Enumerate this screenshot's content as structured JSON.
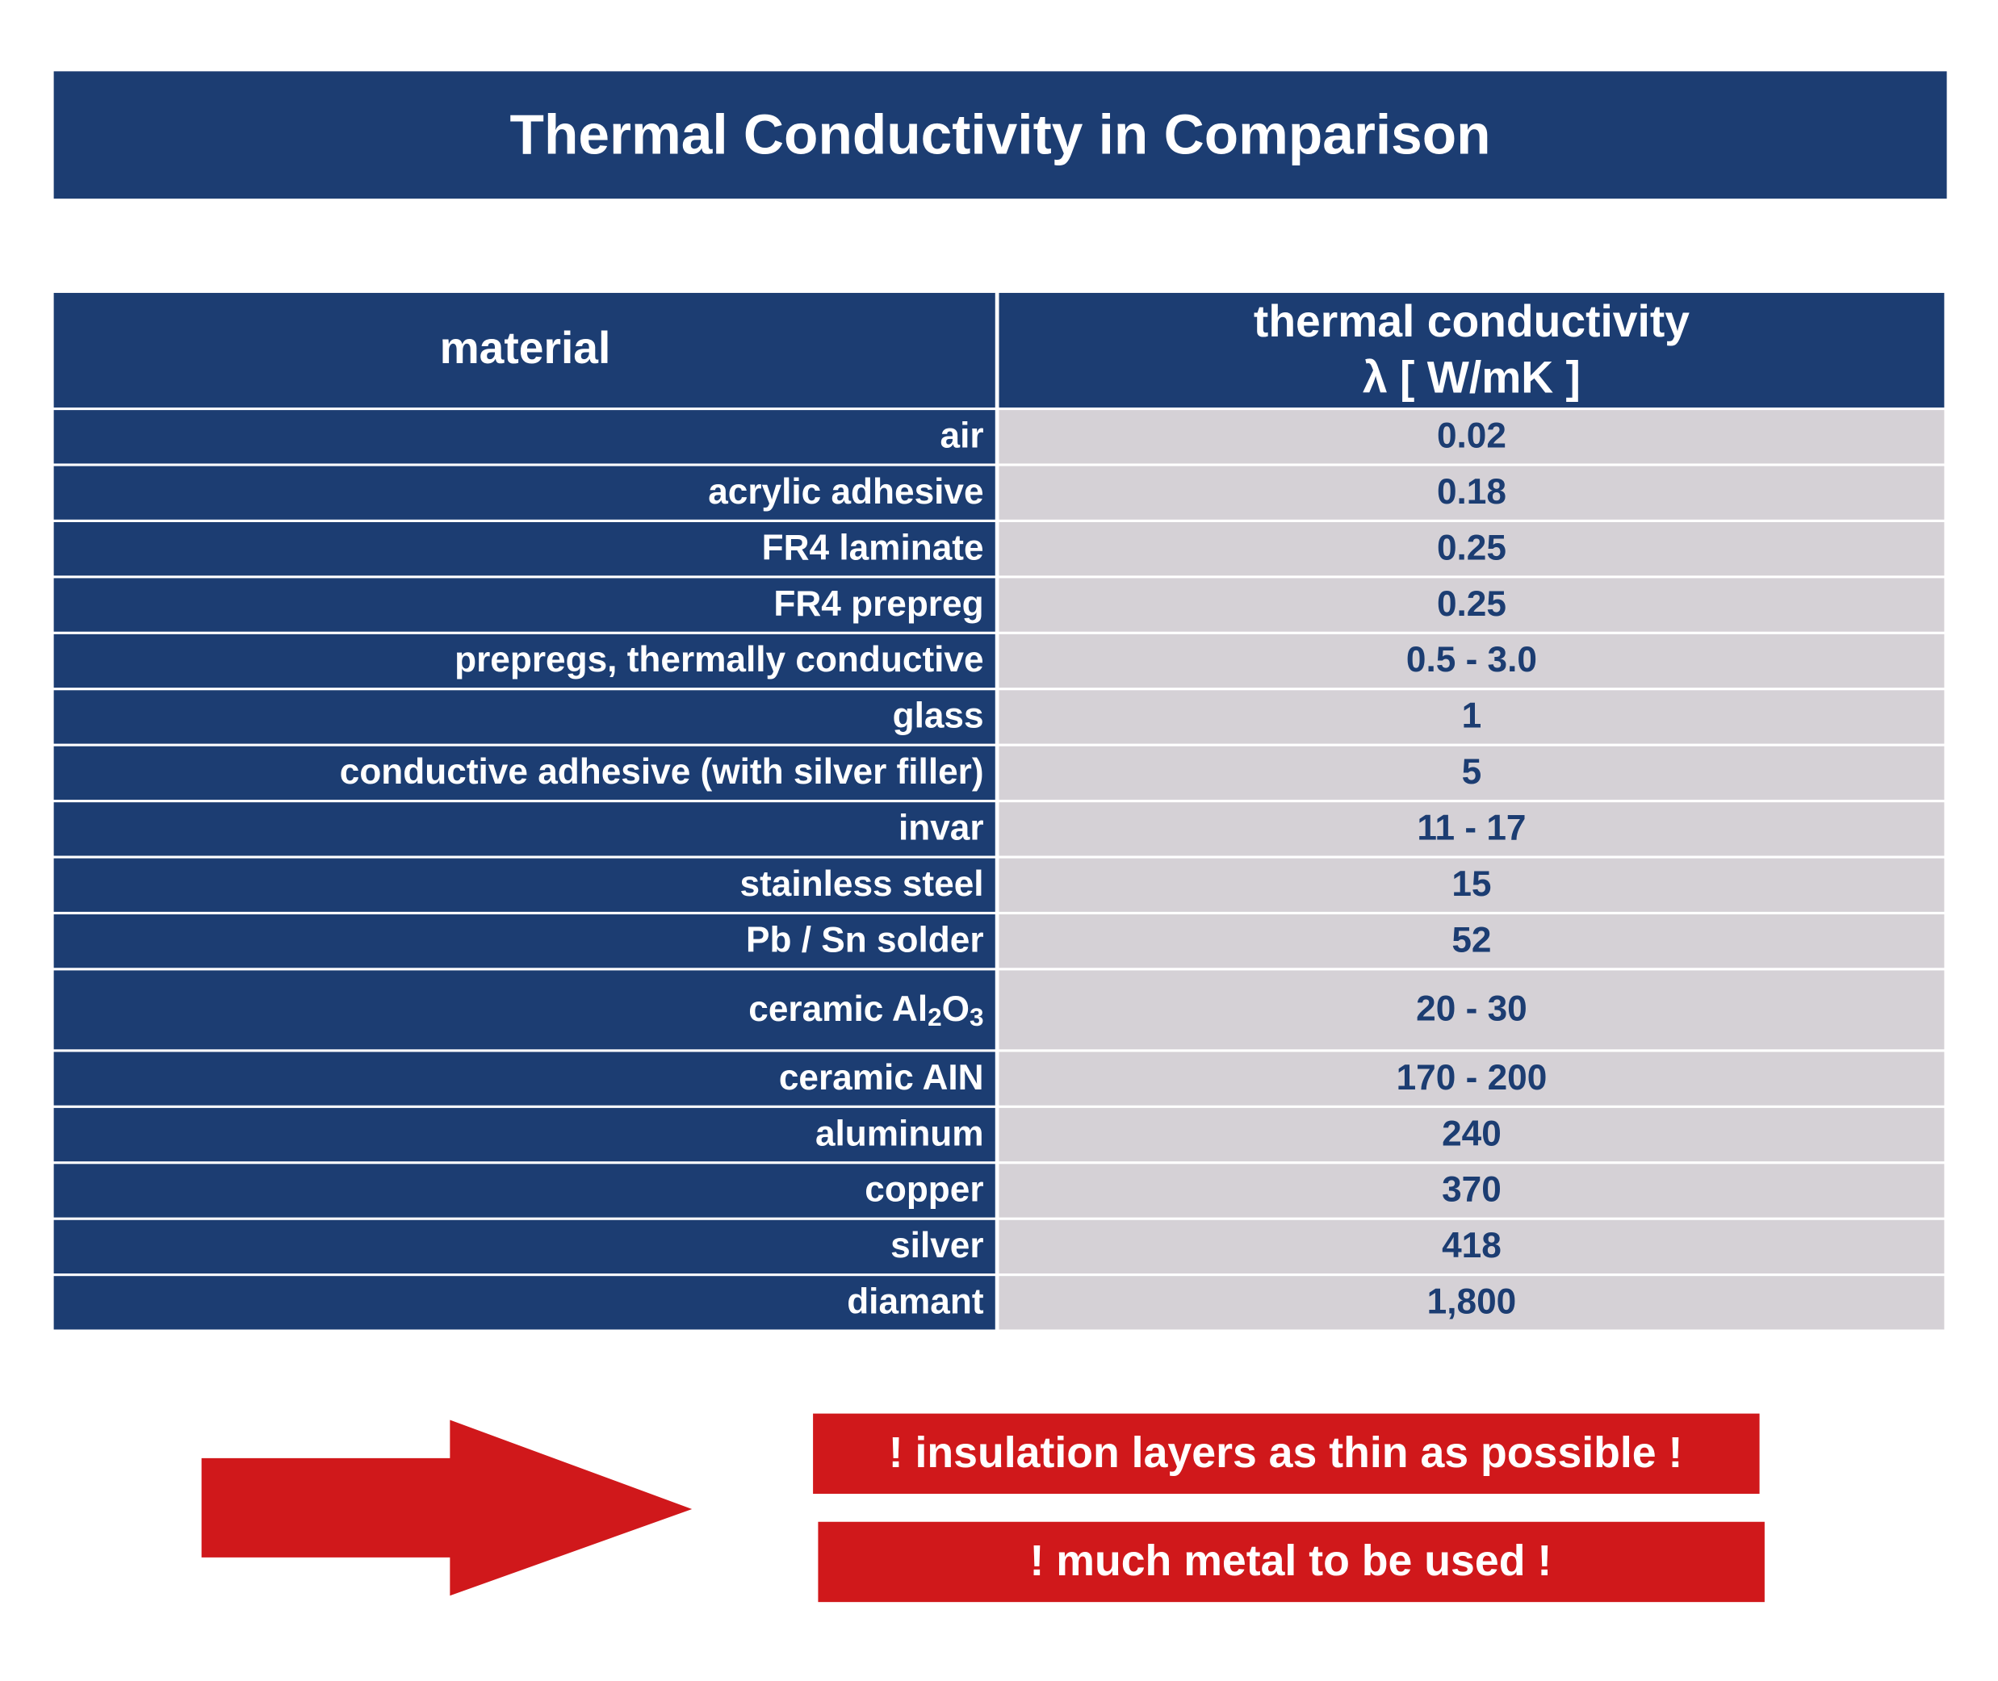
{
  "header": {
    "title": "Thermal Conductivity in Comparison"
  },
  "table": {
    "columns": [
      "material",
      [
        "thermal conductivity",
        "λ [ W/mK ]"
      ]
    ],
    "rows": [
      [
        "air",
        "0.02"
      ],
      [
        "acrylic adhesive",
        "0.18"
      ],
      [
        "FR4 laminate",
        "0.25"
      ],
      [
        "FR4 prepreg",
        "0.25"
      ],
      [
        "prepregs, thermally conductive",
        "0.5 - 3.0"
      ],
      [
        "glass",
        "1"
      ],
      [
        "conductive adhesive (with silver filler)",
        "5"
      ],
      [
        "invar",
        "11 - 17"
      ],
      [
        "stainless steel",
        "15"
      ],
      [
        "Pb / Sn solder",
        "52"
      ],
      [
        [
          "ceramic Al",
          "2",
          "O",
          "3"
        ],
        "20 - 30"
      ],
      [
        "ceramic AIN",
        "170 - 200"
      ],
      [
        "aluminum",
        "240"
      ],
      [
        "copper",
        "370"
      ],
      [
        "silver",
        "418"
      ],
      [
        "diamant",
        "1,800"
      ]
    ]
  },
  "notes": [
    "! insulation layers as thin as possible !",
    "! much metal to be used !"
  ]
}
